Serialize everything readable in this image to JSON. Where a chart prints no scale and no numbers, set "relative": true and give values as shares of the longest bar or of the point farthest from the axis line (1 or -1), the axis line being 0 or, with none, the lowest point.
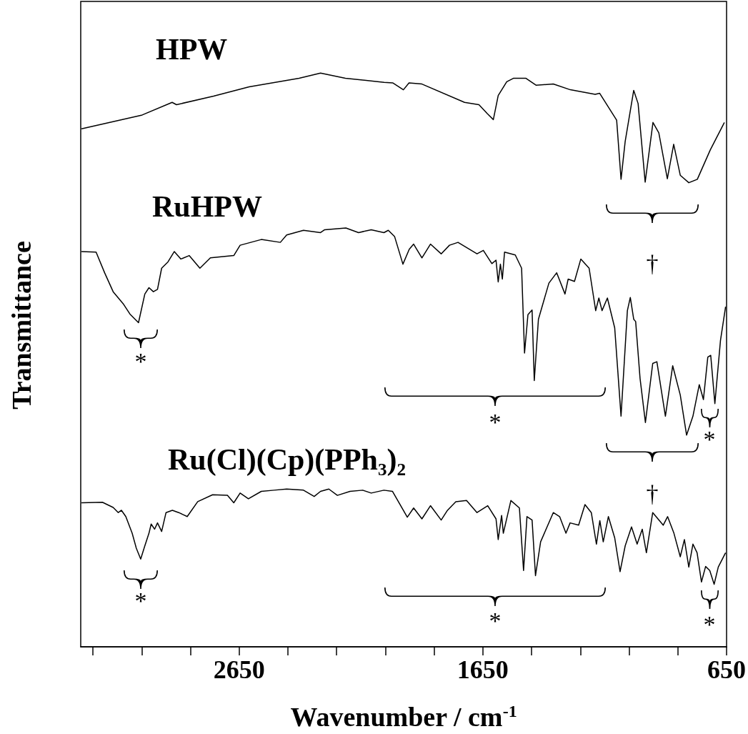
{
  "chart_data": {
    "type": "line",
    "relative": true,
    "xlabel": "Wavenumber / cm$^{-1}$",
    "ylabel": "Transmittance",
    "xlim": [
      3300,
      650
    ],
    "xticks": [
      {
        "value": 3250,
        "label": null
      },
      {
        "value": 3050,
        "label": null
      },
      {
        "value": 2850,
        "label": null
      },
      2650,
      {
        "value": 2450,
        "label": null
      },
      {
        "value": 2250,
        "label": null
      },
      {
        "value": 2050,
        "label": null
      },
      {
        "value": 1850,
        "label": null
      },
      1650,
      {
        "value": 1450,
        "label": null
      },
      {
        "value": 1250,
        "label": null
      },
      {
        "value": 1050,
        "label": null
      },
      {
        "value": 850,
        "label": null
      },
      650
    ],
    "series": [
      {
        "name": "HPW",
        "color": "#000000",
        "x": [
          3297,
          3048,
          2925,
          2907,
          2755,
          2609,
          2404,
          2316,
          2214,
          2055,
          2020,
          1976,
          1953,
          1900,
          1725,
          1666,
          1631,
          1607,
          1587,
          1552,
          1525,
          1473,
          1432,
          1361,
          1291,
          1189,
          1171,
          1101,
          1083,
          1066,
          1031,
          1013,
          984,
          952,
          928,
          893,
          867,
          840,
          805,
          770,
          717,
          659
        ],
        "values": [
          0.903,
          0.927,
          0.949,
          0.945,
          0.96,
          0.976,
          0.991,
          1,
          0.991,
          0.984,
          0.983,
          0.971,
          0.983,
          0.981,
          0.949,
          0.945,
          0.929,
          0.919,
          0.961,
          0.985,
          0.991,
          0.991,
          0.979,
          0.981,
          0.971,
          0.963,
          0.965,
          0.918,
          0.815,
          0.881,
          0.97,
          0.947,
          0.81,
          0.914,
          0.896,
          0.816,
          0.876,
          0.822,
          0.809,
          0.815,
          0.866,
          0.914
        ]
      },
      {
        "name": "RuHPW",
        "color": "#000000",
        "x": [
          3297,
          3237,
          3202,
          3167,
          3124,
          3098,
          3063,
          3037,
          3020,
          3002,
          2985,
          2968,
          2942,
          2916,
          2889,
          2855,
          2811,
          2768,
          2672,
          2646,
          2559,
          2481,
          2455,
          2386,
          2316,
          2299,
          2212,
          2160,
          2108,
          2056,
          2038,
          2012,
          1978,
          1952,
          1934,
          1900,
          1865,
          1821,
          1787,
          1752,
          1674,
          1648,
          1613,
          1596,
          1587,
          1578,
          1570,
          1561,
          1517,
          1491,
          1479,
          1465,
          1448,
          1439,
          1422,
          1379,
          1347,
          1313,
          1300,
          1274,
          1248,
          1214,
          1187,
          1174,
          1161,
          1139,
          1109,
          1083,
          1057,
          1045,
          1031,
          1023,
          1005,
          983,
          953,
          936,
          901,
          871,
          840,
          814,
          788,
          762,
          745,
          727,
          715,
          698,
          675,
          654
        ],
        "values": [
          0.689,
          0.688,
          0.652,
          0.619,
          0.597,
          0.58,
          0.565,
          0.615,
          0.626,
          0.619,
          0.623,
          0.66,
          0.671,
          0.689,
          0.676,
          0.682,
          0.66,
          0.678,
          0.682,
          0.7,
          0.71,
          0.705,
          0.718,
          0.726,
          0.722,
          0.727,
          0.73,
          0.722,
          0.727,
          0.722,
          0.726,
          0.715,
          0.667,
          0.693,
          0.702,
          0.678,
          0.702,
          0.685,
          0.7,
          0.705,
          0.685,
          0.691,
          0.668,
          0.674,
          0.636,
          0.667,
          0.641,
          0.688,
          0.683,
          0.66,
          0.512,
          0.579,
          0.587,
          0.464,
          0.571,
          0.634,
          0.652,
          0.615,
          0.641,
          0.637,
          0.676,
          0.66,
          0.586,
          0.608,
          0.586,
          0.608,
          0.556,
          0.402,
          0.586,
          0.609,
          0.571,
          0.567,
          0.468,
          0.391,
          0.494,
          0.497,
          0.402,
          0.49,
          0.439,
          0.369,
          0.402,
          0.457,
          0.431,
          0.505,
          0.508,
          0.424,
          0.534,
          0.593
        ]
      },
      {
        "name": "Ru(Cl)(Cp)(PPh₃)₂",
        "color": "#000000",
        "x": [
          3297,
          3211,
          3167,
          3146,
          3133,
          3115,
          3089,
          3072,
          3054,
          3037,
          3020,
          3011,
          2997,
          2985,
          2968,
          2950,
          2924,
          2898,
          2863,
          2820,
          2759,
          2698,
          2672,
          2646,
          2612,
          2559,
          2507,
          2455,
          2386,
          2342,
          2316,
          2282,
          2247,
          2195,
          2143,
          2108,
          2056,
          2021,
          1960,
          1934,
          1900,
          1865,
          1821,
          1795,
          1761,
          1717,
          1674,
          1630,
          1596,
          1587,
          1573,
          1566,
          1535,
          1500,
          1483,
          1469,
          1448,
          1434,
          1413,
          1361,
          1335,
          1309,
          1292,
          1257,
          1231,
          1205,
          1184,
          1170,
          1156,
          1135,
          1109,
          1087,
          1066,
          1040,
          1017,
          996,
          979,
          953,
          910,
          892,
          866,
          840,
          823,
          805,
          788,
          771,
          753,
          736,
          719,
          701,
          684,
          654
        ],
        "values": [
          0.251,
          0.252,
          0.243,
          0.234,
          0.238,
          0.227,
          0.198,
          0.172,
          0.153,
          0.176,
          0.198,
          0.214,
          0.205,
          0.216,
          0.201,
          0.234,
          0.238,
          0.234,
          0.227,
          0.253,
          0.265,
          0.264,
          0.251,
          0.268,
          0.258,
          0.271,
          0.273,
          0.275,
          0.273,
          0.262,
          0.271,
          0.275,
          0.264,
          0.271,
          0.273,
          0.268,
          0.273,
          0.271,
          0.226,
          0.242,
          0.223,
          0.246,
          0.221,
          0.238,
          0.253,
          0.255,
          0.234,
          0.246,
          0.223,
          0.187,
          0.229,
          0.198,
          0.255,
          0.242,
          0.133,
          0.227,
          0.221,
          0.124,
          0.183,
          0.234,
          0.227,
          0.198,
          0.216,
          0.212,
          0.248,
          0.234,
          0.179,
          0.22,
          0.183,
          0.227,
          0.19,
          0.131,
          0.176,
          0.209,
          0.179,
          0.205,
          0.164,
          0.234,
          0.212,
          0.227,
          0.198,
          0.157,
          0.187,
          0.139,
          0.179,
          0.164,
          0.113,
          0.14,
          0.133,
          0.109,
          0.139,
          0.164
        ]
      }
    ],
    "annotations": [
      "†",
      "*",
      "*",
      "*",
      "†",
      "*",
      "*",
      "*"
    ]
  }
}
